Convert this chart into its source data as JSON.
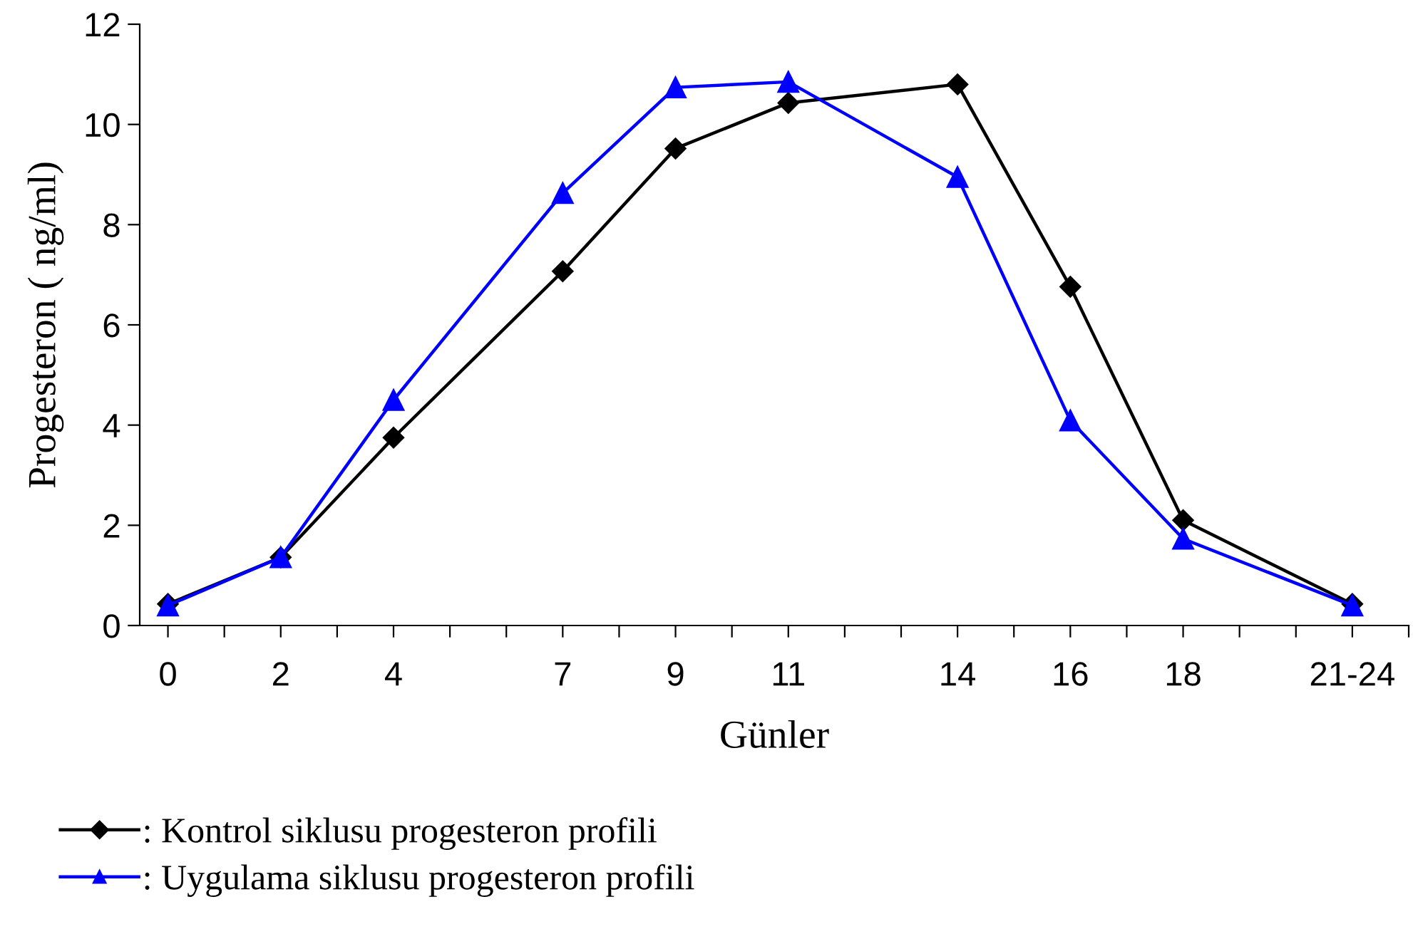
{
  "chart_data": {
    "type": "line",
    "xlabel": "Günler",
    "ylabel": "Progesteron ( ng/ml)",
    "x": [
      0,
      2,
      4,
      7,
      9,
      11,
      14,
      16,
      18,
      21
    ],
    "series": [
      {
        "name": ": Kontrol siklusu progesteron profili",
        "color": "#000000",
        "marker": "diamond",
        "values": [
          0.43,
          1.36,
          3.75,
          7.07,
          9.52,
          10.43,
          10.8,
          6.76,
          2.1,
          0.43
        ]
      },
      {
        "name": ": Uygulama siklusu progesteron profili",
        "color": "#0000ff",
        "marker": "triangle",
        "values": [
          0.4,
          1.36,
          4.5,
          8.63,
          10.74,
          10.85,
          8.95,
          4.09,
          1.73,
          0.4
        ]
      }
    ],
    "xlim": [
      -0.5,
      22
    ],
    "xticks": [
      0,
      {
        "value": 1,
        "label": null
      },
      2,
      {
        "value": 3,
        "label": null
      },
      4,
      {
        "value": 5,
        "label": null
      },
      {
        "value": 6,
        "label": null
      },
      7,
      {
        "value": 8,
        "label": null
      },
      9,
      {
        "value": 10,
        "label": null
      },
      11,
      {
        "value": 12,
        "label": null
      },
      {
        "value": 13,
        "label": null
      },
      14,
      {
        "value": 15,
        "label": null
      },
      16,
      {
        "value": 17,
        "label": null
      },
      18,
      {
        "value": 19,
        "label": null
      },
      {
        "value": 20,
        "label": null
      },
      {
        "value": 21,
        "label": "21-24"
      },
      {
        "value": 22,
        "label": null
      }
    ],
    "ylim": [
      0,
      12
    ],
    "yticks": [
      0,
      2,
      4,
      6,
      8,
      10,
      12
    ],
    "grid": false,
    "legend": "bottom",
    "line_style": "solid"
  }
}
